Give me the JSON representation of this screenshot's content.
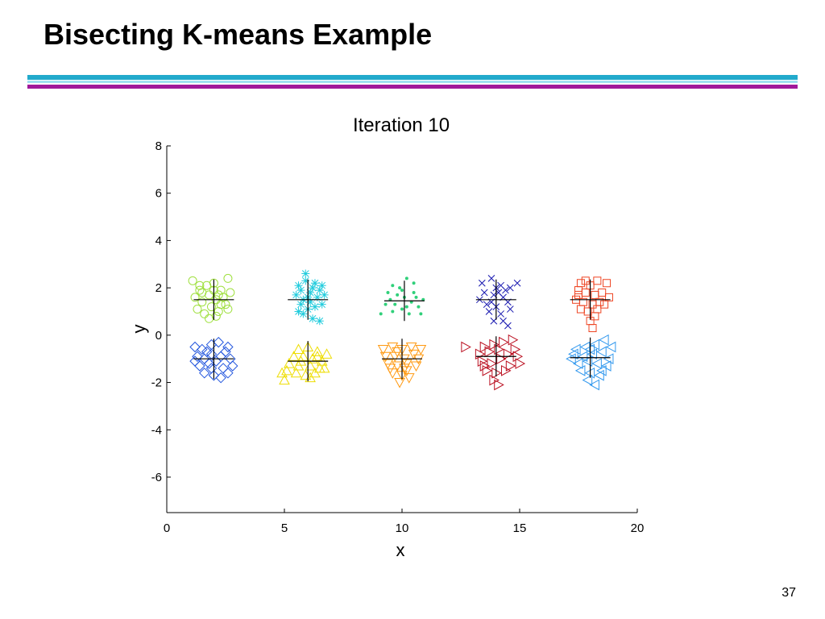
{
  "slide": {
    "title": "Bisecting K-means Example",
    "page_number": "37",
    "rule_colors": [
      "#22aacc",
      "#a0e0f0",
      "#a0189a"
    ]
  },
  "chart_data": {
    "type": "scatter",
    "title": "Iteration 10",
    "xlabel": "x",
    "ylabel": "y",
    "xlim": [
      0,
      20
    ],
    "ylim": [
      -7.5,
      8
    ],
    "xticks": [
      0,
      5,
      10,
      15,
      20
    ],
    "yticks": [
      8,
      6,
      4,
      2,
      0,
      -2,
      -4,
      -6
    ],
    "grid": false,
    "legend": "none",
    "centroid_marker": "plus",
    "centroid_color": "#000000",
    "series": [
      {
        "marker": "circle",
        "color": "#a0e040",
        "centroid": [
          2.0,
          1.5
        ],
        "points": [
          [
            1.1,
            2.3
          ],
          [
            1.4,
            1.9
          ],
          [
            1.7,
            2.1
          ],
          [
            2.0,
            2.2
          ],
          [
            2.3,
            1.9
          ],
          [
            2.6,
            2.4
          ],
          [
            1.2,
            1.6
          ],
          [
            1.5,
            1.4
          ],
          [
            1.8,
            1.7
          ],
          [
            2.1,
            1.5
          ],
          [
            2.4,
            1.6
          ],
          [
            2.7,
            1.8
          ],
          [
            1.3,
            1.1
          ],
          [
            1.6,
            0.9
          ],
          [
            1.9,
            1.2
          ],
          [
            2.2,
            1.0
          ],
          [
            2.5,
            1.3
          ],
          [
            1.8,
            0.7
          ],
          [
            2.1,
            0.8
          ],
          [
            1.5,
            1.8
          ],
          [
            2.2,
            1.7
          ],
          [
            2.6,
            1.1
          ],
          [
            1.4,
            2.1
          ],
          [
            2.0,
            1.9
          ],
          [
            2.3,
            1.3
          ]
        ]
      },
      {
        "marker": "asterisk",
        "color": "#22ccdd",
        "centroid": [
          6.0,
          1.5
        ],
        "points": [
          [
            5.6,
            2.1
          ],
          [
            5.9,
            2.3
          ],
          [
            6.2,
            2.0
          ],
          [
            6.6,
            2.1
          ],
          [
            5.5,
            1.7
          ],
          [
            5.8,
            1.5
          ],
          [
            6.1,
            1.8
          ],
          [
            6.4,
            1.6
          ],
          [
            6.7,
            1.7
          ],
          [
            5.7,
            1.3
          ],
          [
            6.0,
            1.1
          ],
          [
            6.3,
            1.2
          ],
          [
            5.8,
            0.9
          ],
          [
            6.2,
            0.7
          ],
          [
            6.5,
            0.6
          ],
          [
            5.9,
            2.6
          ],
          [
            6.1,
            1.4
          ],
          [
            6.5,
            1.9
          ],
          [
            5.6,
            1.0
          ],
          [
            6.0,
            1.6
          ],
          [
            6.3,
            2.2
          ],
          [
            5.7,
            1.9
          ],
          [
            6.6,
            1.3
          ]
        ]
      },
      {
        "marker": "dot",
        "color": "#30d07a",
        "centroid": [
          10.1,
          1.45
        ],
        "points": [
          [
            9.6,
            2.1
          ],
          [
            9.9,
            2.0
          ],
          [
            10.2,
            2.4
          ],
          [
            10.5,
            2.2
          ],
          [
            10.6,
            1.6
          ],
          [
            9.5,
            1.5
          ],
          [
            9.8,
            1.7
          ],
          [
            10.1,
            1.6
          ],
          [
            10.4,
            1.4
          ],
          [
            10.7,
            1.2
          ],
          [
            9.3,
            1.3
          ],
          [
            9.6,
            1.0
          ],
          [
            10.0,
            1.1
          ],
          [
            10.3,
            0.9
          ],
          [
            10.8,
            0.9
          ],
          [
            9.1,
            0.9
          ],
          [
            10.0,
            1.9
          ],
          [
            10.5,
            1.8
          ],
          [
            9.7,
            1.3
          ],
          [
            10.2,
            1.2
          ],
          [
            9.4,
            1.8
          ],
          [
            10.9,
            1.5
          ]
        ]
      },
      {
        "marker": "x",
        "color": "#1818b0",
        "centroid": [
          14.0,
          1.5
        ],
        "points": [
          [
            13.4,
            2.2
          ],
          [
            13.8,
            2.4
          ],
          [
            14.2,
            2.1
          ],
          [
            14.6,
            2.0
          ],
          [
            14.9,
            2.2
          ],
          [
            13.5,
            1.8
          ],
          [
            13.9,
            1.7
          ],
          [
            14.3,
            1.6
          ],
          [
            14.5,
            1.4
          ],
          [
            13.6,
            1.3
          ],
          [
            14.0,
            1.2
          ],
          [
            14.2,
            0.9
          ],
          [
            13.7,
            1.0
          ],
          [
            14.3,
            0.6
          ],
          [
            13.9,
            0.6
          ],
          [
            14.5,
            0.4
          ],
          [
            13.3,
            1.5
          ],
          [
            14.1,
            1.8
          ],
          [
            14.4,
            1.9
          ],
          [
            13.8,
            1.4
          ],
          [
            14.6,
            1.1
          ],
          [
            14.0,
            2.0
          ]
        ]
      },
      {
        "marker": "square",
        "color": "#ee4422",
        "centroid": [
          18.0,
          1.5
        ],
        "points": [
          [
            17.6,
            2.2
          ],
          [
            18.0,
            2.1
          ],
          [
            18.3,
            2.3
          ],
          [
            18.7,
            2.2
          ],
          [
            17.5,
            1.9
          ],
          [
            17.8,
            1.8
          ],
          [
            18.2,
            1.7
          ],
          [
            18.5,
            1.8
          ],
          [
            18.8,
            1.6
          ],
          [
            17.4,
            1.5
          ],
          [
            17.7,
            1.4
          ],
          [
            18.1,
            1.3
          ],
          [
            18.4,
            1.4
          ],
          [
            17.6,
            1.1
          ],
          [
            17.9,
            1.0
          ],
          [
            18.2,
            0.8
          ],
          [
            18.0,
            0.6
          ],
          [
            18.1,
            0.3
          ],
          [
            17.5,
            1.7
          ],
          [
            18.3,
            1.1
          ],
          [
            17.8,
            2.3
          ],
          [
            18.6,
            1.3
          ]
        ]
      },
      {
        "marker": "diamond",
        "color": "#2255dd",
        "centroid": [
          2.0,
          -1.0
        ],
        "points": [
          [
            1.2,
            -0.5
          ],
          [
            1.5,
            -0.6
          ],
          [
            1.9,
            -0.4
          ],
          [
            2.2,
            -0.3
          ],
          [
            2.6,
            -0.5
          ],
          [
            1.3,
            -0.9
          ],
          [
            1.6,
            -1.0
          ],
          [
            1.9,
            -0.8
          ],
          [
            2.3,
            -0.9
          ],
          [
            2.7,
            -1.0
          ],
          [
            1.4,
            -1.3
          ],
          [
            1.8,
            -1.2
          ],
          [
            2.1,
            -1.1
          ],
          [
            2.4,
            -1.4
          ],
          [
            2.8,
            -1.3
          ],
          [
            1.6,
            -1.6
          ],
          [
            2.0,
            -1.7
          ],
          [
            2.3,
            -1.8
          ],
          [
            1.9,
            -1.4
          ],
          [
            2.5,
            -0.7
          ],
          [
            1.2,
            -1.1
          ],
          [
            2.6,
            -1.6
          ],
          [
            1.7,
            -0.7
          ]
        ]
      },
      {
        "marker": "triangle-up",
        "color": "#eedd00",
        "centroid": [
          6.0,
          -1.1
        ],
        "points": [
          [
            5.6,
            -0.6
          ],
          [
            6.0,
            -0.5
          ],
          [
            6.4,
            -0.7
          ],
          [
            6.8,
            -0.8
          ],
          [
            5.4,
            -0.9
          ],
          [
            5.8,
            -0.9
          ],
          [
            6.2,
            -1.0
          ],
          [
            6.6,
            -1.1
          ],
          [
            5.2,
            -1.2
          ],
          [
            5.6,
            -1.3
          ],
          [
            6.1,
            -1.3
          ],
          [
            6.5,
            -1.4
          ],
          [
            5.1,
            -1.5
          ],
          [
            5.5,
            -1.6
          ],
          [
            5.9,
            -1.7
          ],
          [
            6.3,
            -1.6
          ],
          [
            4.9,
            -1.6
          ],
          [
            5.0,
            -1.9
          ],
          [
            6.7,
            -1.4
          ],
          [
            5.7,
            -1.1
          ],
          [
            6.4,
            -0.9
          ],
          [
            6.1,
            -1.8
          ]
        ]
      },
      {
        "marker": "triangle-down",
        "color": "#ff9911",
        "centroid": [
          10.0,
          -1.0
        ],
        "points": [
          [
            9.2,
            -0.6
          ],
          [
            9.6,
            -0.5
          ],
          [
            10.0,
            -0.6
          ],
          [
            10.4,
            -0.5
          ],
          [
            10.8,
            -0.6
          ],
          [
            9.3,
            -0.9
          ],
          [
            9.7,
            -0.9
          ],
          [
            10.1,
            -1.0
          ],
          [
            10.5,
            -0.8
          ],
          [
            9.4,
            -1.2
          ],
          [
            9.8,
            -1.3
          ],
          [
            10.2,
            -1.2
          ],
          [
            10.6,
            -1.3
          ],
          [
            9.6,
            -1.6
          ],
          [
            10.0,
            -1.7
          ],
          [
            10.3,
            -1.8
          ],
          [
            9.9,
            -2.0
          ],
          [
            10.2,
            -1.5
          ],
          [
            9.5,
            -1.4
          ],
          [
            10.7,
            -1.0
          ],
          [
            9.8,
            -0.7
          ],
          [
            10.1,
            -1.4
          ]
        ]
      },
      {
        "marker": "triangle-right",
        "color": "#bb1122",
        "centroid": [
          14.0,
          -0.9
        ],
        "points": [
          [
            12.7,
            -0.5
          ],
          [
            13.5,
            -0.5
          ],
          [
            13.9,
            -0.4
          ],
          [
            14.3,
            -0.3
          ],
          [
            14.7,
            -0.2
          ],
          [
            13.3,
            -0.8
          ],
          [
            13.7,
            -0.7
          ],
          [
            14.1,
            -0.6
          ],
          [
            14.5,
            -0.8
          ],
          [
            14.9,
            -0.9
          ],
          [
            13.4,
            -1.1
          ],
          [
            13.8,
            -1.2
          ],
          [
            14.2,
            -1.0
          ],
          [
            14.6,
            -1.3
          ],
          [
            15.0,
            -1.2
          ],
          [
            13.6,
            -1.5
          ],
          [
            14.0,
            -1.6
          ],
          [
            14.4,
            -1.5
          ],
          [
            13.9,
            -1.9
          ],
          [
            14.1,
            -2.1
          ],
          [
            14.8,
            -0.6
          ],
          [
            13.5,
            -1.3
          ]
        ]
      },
      {
        "marker": "triangle-left",
        "color": "#3399ee",
        "centroid": [
          18.0,
          -0.95
        ],
        "points": [
          [
            17.4,
            -0.6
          ],
          [
            17.8,
            -0.5
          ],
          [
            18.2,
            -0.4
          ],
          [
            18.6,
            -0.2
          ],
          [
            18.9,
            -0.5
          ],
          [
            17.3,
            -0.8
          ],
          [
            17.7,
            -0.9
          ],
          [
            18.1,
            -0.8
          ],
          [
            18.5,
            -0.7
          ],
          [
            18.8,
            -1.0
          ],
          [
            17.5,
            -1.2
          ],
          [
            17.9,
            -1.1
          ],
          [
            18.3,
            -1.2
          ],
          [
            18.7,
            -1.3
          ],
          [
            17.6,
            -1.5
          ],
          [
            18.0,
            -1.6
          ],
          [
            18.4,
            -1.7
          ],
          [
            17.9,
            -1.9
          ],
          [
            18.2,
            -2.1
          ],
          [
            18.5,
            -1.5
          ],
          [
            17.2,
            -1.0
          ],
          [
            18.0,
            -0.6
          ]
        ]
      }
    ]
  }
}
